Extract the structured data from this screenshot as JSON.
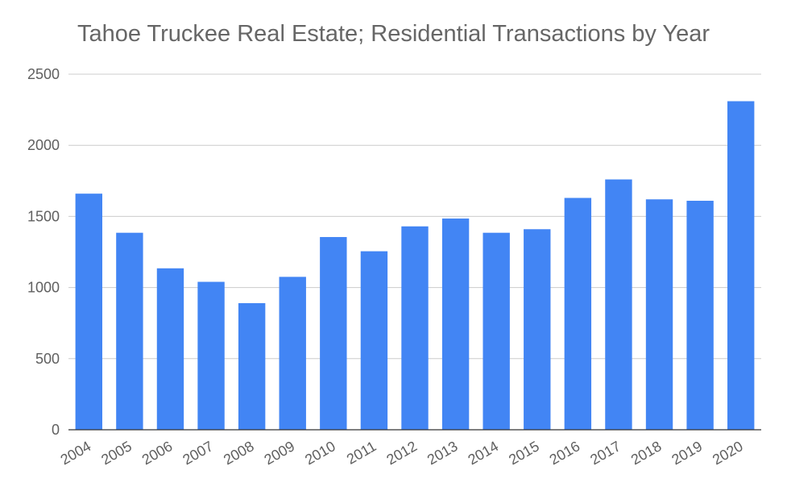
{
  "chart_data": {
    "type": "bar",
    "title": "Tahoe Truckee Real Estate; Residential Transactions by Year",
    "xlabel": "",
    "ylabel": "",
    "categories": [
      "2004",
      "2005",
      "2006",
      "2007",
      "2008",
      "2009",
      "2010",
      "2011",
      "2012",
      "2013",
      "2014",
      "2015",
      "2016",
      "2017",
      "2018",
      "2019",
      "2020"
    ],
    "series": [
      {
        "values": [
          1660,
          1385,
          1135,
          1040,
          890,
          1075,
          1355,
          1255,
          1430,
          1485,
          1385,
          1410,
          1630,
          1760,
          1620,
          1610,
          2310
        ]
      }
    ],
    "ylim": [
      0,
      2500
    ],
    "yticks": [
      0,
      500,
      1000,
      1500,
      2000,
      2500
    ],
    "grid": true,
    "legend": "none",
    "colors": {
      "bar": "#4285f4",
      "grid": "#cccccc",
      "baseline": "#333333",
      "text": "#5f5f5f"
    }
  }
}
